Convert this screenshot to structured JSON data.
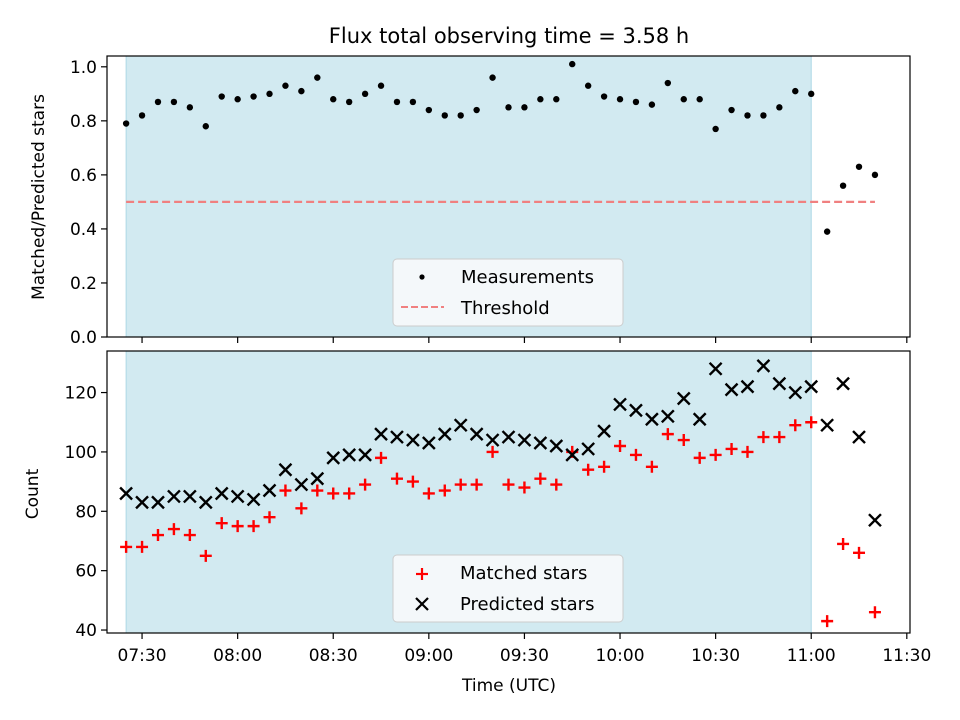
{
  "chart_data": [
    {
      "type": "scatter",
      "title": "Flux total observing time = 3.58 h",
      "xlabel": "",
      "ylabel": "Matched/Predicted stars",
      "ylim": [
        0,
        1.04
      ],
      "xlim": [
        "07:19",
        "11:31"
      ],
      "yticks": [
        "0.0",
        "0.2",
        "0.4",
        "0.6",
        "0.8",
        "1.0"
      ],
      "shaded_interval": [
        "07:25",
        "11:00"
      ],
      "shade_color": "#add8e6",
      "legend_position": "lower center",
      "series": [
        {
          "name": "Measurements",
          "color": "#000000",
          "marker": "dot",
          "x": [
            "07:25",
            "07:30",
            "07:35",
            "07:40",
            "07:45",
            "07:50",
            "07:55",
            "08:00",
            "08:05",
            "08:10",
            "08:15",
            "08:20",
            "08:25",
            "08:30",
            "08:35",
            "08:40",
            "08:45",
            "08:50",
            "08:55",
            "09:00",
            "09:05",
            "09:10",
            "09:15",
            "09:20",
            "09:25",
            "09:30",
            "09:35",
            "09:40",
            "09:45",
            "09:50",
            "09:55",
            "10:00",
            "10:05",
            "10:10",
            "10:15",
            "10:20",
            "10:25",
            "10:30",
            "10:35",
            "10:40",
            "10:45",
            "10:50",
            "10:55",
            "11:00",
            "11:05",
            "11:10",
            "11:15",
            "11:20"
          ],
          "y": [
            0.79,
            0.82,
            0.87,
            0.87,
            0.85,
            0.78,
            0.89,
            0.88,
            0.89,
            0.9,
            0.93,
            0.91,
            0.96,
            0.88,
            0.87,
            0.9,
            0.93,
            0.87,
            0.87,
            0.84,
            0.82,
            0.82,
            0.84,
            0.96,
            0.85,
            0.85,
            0.88,
            0.88,
            1.01,
            0.93,
            0.89,
            0.88,
            0.87,
            0.86,
            0.94,
            0.88,
            0.88,
            0.77,
            0.84,
            0.82,
            0.82,
            0.85,
            0.91,
            0.9,
            0.39,
            0.56,
            0.63,
            0.6
          ]
        },
        {
          "name": "Threshold",
          "color": "#f08080",
          "style": "dashed",
          "x": [
            "07:25",
            "11:20"
          ],
          "y": [
            0.5,
            0.5
          ]
        }
      ]
    },
    {
      "type": "scatter",
      "title": "",
      "xlabel": "Time (UTC)",
      "ylabel": "Count",
      "ylim": [
        39,
        134
      ],
      "xlim": [
        "07:19",
        "11:31"
      ],
      "yticks": [
        "40",
        "60",
        "80",
        "100",
        "120"
      ],
      "xticks": [
        "07:30",
        "08:00",
        "08:30",
        "09:00",
        "09:30",
        "10:00",
        "10:30",
        "11:00",
        "11:30"
      ],
      "shaded_interval": [
        "07:25",
        "11:00"
      ],
      "shade_color": "#add8e6",
      "legend_position": "lower center",
      "series": [
        {
          "name": "Matched stars",
          "color": "#ff0000",
          "marker": "plus",
          "x": [
            "07:25",
            "07:30",
            "07:35",
            "07:40",
            "07:45",
            "07:50",
            "07:55",
            "08:00",
            "08:05",
            "08:10",
            "08:15",
            "08:20",
            "08:25",
            "08:30",
            "08:35",
            "08:40",
            "08:45",
            "08:50",
            "08:55",
            "09:00",
            "09:05",
            "09:10",
            "09:15",
            "09:20",
            "09:25",
            "09:30",
            "09:35",
            "09:40",
            "09:45",
            "09:50",
            "09:55",
            "10:00",
            "10:05",
            "10:10",
            "10:15",
            "10:20",
            "10:25",
            "10:30",
            "10:35",
            "10:40",
            "10:45",
            "10:50",
            "10:55",
            "11:00",
            "11:05",
            "11:10",
            "11:15",
            "11:20"
          ],
          "y": [
            68,
            68,
            72,
            74,
            72,
            65,
            76,
            75,
            75,
            78,
            87,
            81,
            87,
            86,
            86,
            89,
            98,
            91,
            90,
            86,
            87,
            89,
            89,
            100,
            89,
            88,
            91,
            89,
            100,
            94,
            95,
            102,
            99,
            95,
            106,
            104,
            98,
            99,
            101,
            100,
            105,
            105,
            109,
            110,
            43,
            69,
            66,
            46
          ]
        },
        {
          "name": "Predicted stars",
          "color": "#000000",
          "marker": "x",
          "x": [
            "07:25",
            "07:30",
            "07:35",
            "07:40",
            "07:45",
            "07:50",
            "07:55",
            "08:00",
            "08:05",
            "08:10",
            "08:15",
            "08:20",
            "08:25",
            "08:30",
            "08:35",
            "08:40",
            "08:45",
            "08:50",
            "08:55",
            "09:00",
            "09:05",
            "09:10",
            "09:15",
            "09:20",
            "09:25",
            "09:30",
            "09:35",
            "09:40",
            "09:45",
            "09:50",
            "09:55",
            "10:00",
            "10:05",
            "10:10",
            "10:15",
            "10:20",
            "10:25",
            "10:30",
            "10:35",
            "10:40",
            "10:45",
            "10:50",
            "10:55",
            "11:00",
            "11:05",
            "11:10",
            "11:15",
            "11:20"
          ],
          "y": [
            86,
            83,
            83,
            85,
            85,
            83,
            86,
            85,
            84,
            87,
            94,
            89,
            91,
            98,
            99,
            99,
            106,
            105,
            104,
            103,
            106,
            109,
            106,
            104,
            105,
            104,
            103,
            102,
            99,
            101,
            107,
            116,
            114,
            111,
            112,
            118,
            111,
            128,
            121,
            122,
            129,
            123,
            120,
            122,
            109,
            123,
            105,
            77
          ]
        }
      ]
    }
  ]
}
